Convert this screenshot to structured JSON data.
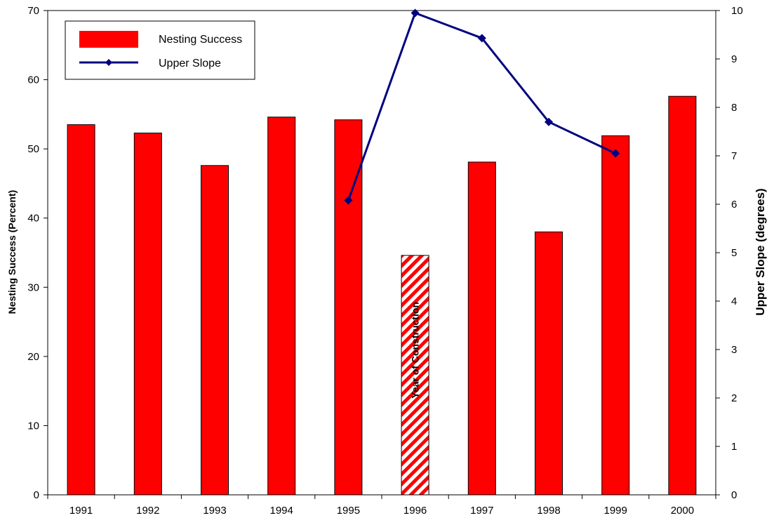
{
  "chart_data": {
    "type": "bar",
    "title": "",
    "xlabel": "",
    "ylabel": "Nesting Success (Percent)",
    "y2label": "Upper Slope (degrees)",
    "categories": [
      "1991",
      "1992",
      "1993",
      "1994",
      "1995",
      "1996",
      "1997",
      "1998",
      "1999",
      "2000"
    ],
    "ylim": [
      0,
      70
    ],
    "y_ticks": [
      0,
      10,
      20,
      30,
      40,
      50,
      60,
      70
    ],
    "y2lim": [
      0,
      10
    ],
    "y2_ticks": [
      0,
      1,
      2,
      3,
      4,
      5,
      6,
      7,
      8,
      9,
      10
    ],
    "grid": false,
    "legend_position": "top-left",
    "series": [
      {
        "name": "Nesting Success",
        "type": "bar",
        "axis": "left",
        "color": "#ff0000",
        "values": [
          53.5,
          52.3,
          47.6,
          54.6,
          54.2,
          34.6,
          48.1,
          38.0,
          51.9,
          57.6
        ]
      },
      {
        "name": "Upper Slope",
        "type": "line",
        "axis": "right",
        "color": "#000080",
        "marker": "diamond",
        "values": [
          null,
          null,
          null,
          null,
          6.08,
          9.95,
          9.43,
          7.7,
          7.05,
          null
        ]
      }
    ],
    "highlight": {
      "category": "1996",
      "pattern": "red-white-diagonal-stripes",
      "annotation": "Year of Construction"
    }
  }
}
